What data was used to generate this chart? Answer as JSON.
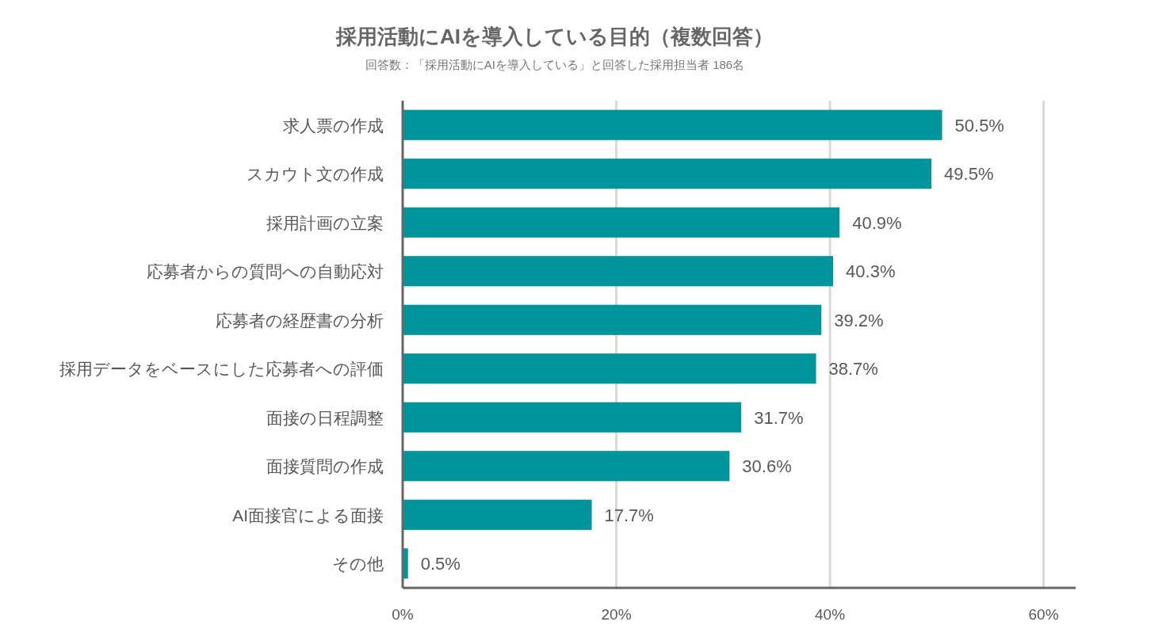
{
  "chart_data": {
    "type": "bar",
    "orientation": "horizontal",
    "title": "採用活動にAIを導入している目的（複数回答）",
    "subtitle": "回答数：「採用活動にAIを導入している」と回答した採用担当者 186名",
    "categories": [
      "求人票の作成",
      "スカウト文の作成",
      "採用計画の立案",
      "応募者からの質問への自動応対",
      "応募者の経歴書の分析",
      "採用データをベースにした応募者への評価",
      "面接の日程調整",
      "面接質問の作成",
      "AI面接官による面接",
      "その他"
    ],
    "values": [
      50.5,
      49.5,
      40.9,
      40.3,
      39.2,
      38.7,
      31.7,
      30.6,
      17.7,
      0.5
    ],
    "value_labels": [
      "50.5%",
      "49.5%",
      "40.9%",
      "40.3%",
      "39.2%",
      "38.7%",
      "31.7%",
      "30.6%",
      "17.7%",
      "0.5%"
    ],
    "color": "#00949c",
    "xlim": [
      0,
      63
    ],
    "xticks": [
      {
        "value": 0,
        "label": "0%"
      },
      {
        "value": 20,
        "label": "20%"
      },
      {
        "value": 40,
        "label": "40%"
      },
      {
        "value": 60,
        "label": "60%"
      }
    ],
    "grid": "x"
  }
}
